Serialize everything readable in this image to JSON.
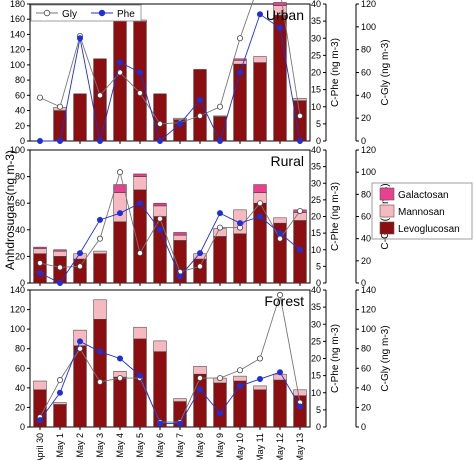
{
  "figure": {
    "y_left_label": "Anhdrosugars(ng m-3)",
    "y_right_inner_label": "C-Phe (ng m-3)",
    "y_right_outer_label": "C-Gly (ng m-3)",
    "legend_lines": [
      {
        "name": "Gly",
        "color": "#777777",
        "marker": "open-circle"
      },
      {
        "name": "Phe",
        "color": "#1f2fd6",
        "marker": "filled-circle"
      }
    ],
    "legend_bars": [
      {
        "name": "Galactosan",
        "color": "#e8418f"
      },
      {
        "name": "Mannosan",
        "color": "#f6b9bf"
      },
      {
        "name": "Levoglucosan",
        "color": "#8b0e10"
      }
    ]
  },
  "chart_data": [
    {
      "type": "bar",
      "title": "Urban",
      "categories": [
        "April 30",
        "May 1",
        "May 2",
        "May 3",
        "May 4",
        "May 5",
        "May 6",
        "May 7",
        "May 8",
        "May 9",
        "May 10",
        "May 11",
        "May 12",
        "May 13"
      ],
      "stacked": true,
      "series": [
        {
          "name": "Levoglucosan",
          "values": [
            0,
            40,
            62,
            108,
            170,
            157,
            62,
            28,
            94,
            32,
            101,
            103,
            165,
            53
          ]
        },
        {
          "name": "Mannosan",
          "values": [
            0,
            4,
            0,
            0,
            4,
            2,
            0,
            2,
            0,
            1,
            5,
            8,
            13,
            3
          ]
        },
        {
          "name": "Galactosan",
          "values": [
            0,
            0,
            0,
            0,
            2,
            0,
            0,
            0,
            0,
            0,
            2,
            0,
            4,
            0
          ]
        }
      ],
      "lines": [
        {
          "name": "Gly",
          "axis": "C-Gly",
          "values": [
            38,
            30,
            92,
            40,
            60,
            42,
            15,
            16,
            22,
            30,
            90,
            140,
            132,
            22
          ]
        },
        {
          "name": "Phe",
          "axis": "C-Phe",
          "values": [
            0,
            0,
            30,
            0,
            23,
            20,
            0,
            5,
            12,
            0,
            20,
            37,
            33,
            0
          ]
        }
      ],
      "ylim_left": [
        0,
        180
      ],
      "ylim_phe": [
        0,
        40
      ],
      "ylim_gly": [
        0,
        120
      ]
    },
    {
      "type": "bar",
      "title": "Rural",
      "categories": [
        "April 30",
        "May 1",
        "May 2",
        "May 3",
        "May 4",
        "May 5",
        "May 6",
        "May 7",
        "May 8",
        "May 9",
        "May 10",
        "May 11",
        "May 12",
        "May 13"
      ],
      "stacked": true,
      "series": [
        {
          "name": "Levoglucosan",
          "values": [
            22,
            20,
            18,
            22,
            46,
            70,
            50,
            32,
            18,
            35,
            37,
            60,
            45,
            47
          ]
        },
        {
          "name": "Mannosan",
          "values": [
            4,
            4,
            4,
            2,
            22,
            10,
            8,
            4,
            4,
            6,
            18,
            8,
            4,
            6
          ]
        },
        {
          "name": "Galactosan",
          "values": [
            1,
            1,
            0,
            0,
            6,
            2,
            2,
            2,
            0,
            0,
            0,
            6,
            0,
            2
          ]
        }
      ],
      "lines": [
        {
          "name": "Gly",
          "axis": "C-Gly",
          "values": [
            18,
            14,
            15,
            40,
            100,
            27,
            58,
            10,
            15,
            50,
            50,
            72,
            40,
            65
          ]
        },
        {
          "name": "Phe",
          "axis": "C-Phe",
          "values": [
            3,
            0,
            9,
            19,
            21,
            24,
            16,
            2,
            9,
            21,
            18,
            20,
            15,
            10
          ]
        }
      ],
      "ylim_left": [
        0,
        100
      ],
      "ylim_phe": [
        0,
        40
      ],
      "ylim_gly": [
        0,
        120
      ]
    },
    {
      "type": "bar",
      "title": "Forest",
      "categories": [
        "April 30",
        "May 1",
        "May 2",
        "May 3",
        "May 4",
        "May 5",
        "May 6",
        "May 7",
        "May 8",
        "May 9",
        "May 10",
        "May 11",
        "May 12",
        "May 13"
      ],
      "stacked": true,
      "series": [
        {
          "name": "Levoglucosan",
          "values": [
            38,
            23,
            83,
            110,
            51,
            90,
            77,
            26,
            54,
            45,
            47,
            38,
            48,
            32
          ]
        },
        {
          "name": "Mannosan",
          "values": [
            9,
            2,
            16,
            20,
            6,
            12,
            11,
            3,
            8,
            5,
            5,
            4,
            6,
            6
          ]
        },
        {
          "name": "Galactosan",
          "values": [
            0,
            0,
            0,
            0,
            0,
            0,
            0,
            0,
            0,
            0,
            0,
            0,
            0,
            0
          ]
        }
      ],
      "lines": [
        {
          "name": "Gly",
          "axis": "C-Gly",
          "values": [
            10,
            48,
            80,
            46,
            50,
            50,
            5,
            5,
            50,
            50,
            58,
            70,
            135,
            25
          ]
        },
        {
          "name": "Phe",
          "axis": "C-Phe",
          "values": [
            2,
            10,
            25,
            22,
            20,
            15,
            1,
            1,
            11,
            4,
            12,
            14,
            16,
            6
          ]
        }
      ],
      "ylim_left": [
        0,
        140
      ],
      "ylim_phe": [
        0,
        40
      ],
      "ylim_gly": [
        0,
        140
      ]
    }
  ]
}
